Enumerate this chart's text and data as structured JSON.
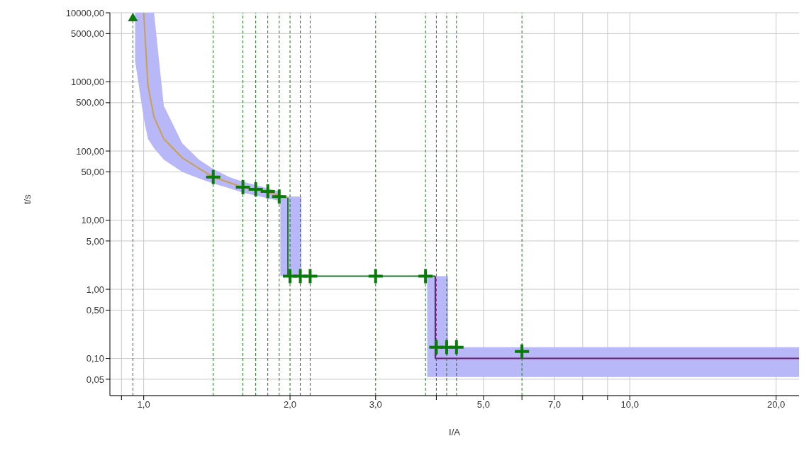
{
  "chart_data": {
    "type": "line",
    "xlabel": "I/A",
    "ylabel": "t/s",
    "log": "xy",
    "grid": true,
    "legend": false,
    "xlim": [
      0.852,
      22.3
    ],
    "ylim": [
      0.029,
      10000
    ],
    "xticks": [
      {
        "value": 0.9,
        "label": null
      },
      {
        "value": 1,
        "label": "1,0"
      },
      {
        "value": 2,
        "label": "2,0"
      },
      {
        "value": 3,
        "label": "3,0"
      },
      {
        "value": 4,
        "label": null
      },
      {
        "value": 5,
        "label": "5,0"
      },
      {
        "value": 6,
        "label": null
      },
      {
        "value": 7,
        "label": "7,0"
      },
      {
        "value": 8,
        "label": null
      },
      {
        "value": 9,
        "label": null
      },
      {
        "value": 10,
        "label": "10,0"
      },
      {
        "value": 20,
        "label": "20,0"
      }
    ],
    "yticks": [
      {
        "value": 0.05,
        "label": "0,05"
      },
      {
        "value": 0.1,
        "label": "0,10"
      },
      {
        "value": 0.5,
        "label": "0,50"
      },
      {
        "value": 1,
        "label": "1,00"
      },
      {
        "value": 5,
        "label": "5,00"
      },
      {
        "value": 10,
        "label": "10,00"
      },
      {
        "value": 50,
        "label": "50,00"
      },
      {
        "value": 100,
        "label": "100,00"
      },
      {
        "value": 500,
        "label": "500,00"
      },
      {
        "value": 1000,
        "label": "1000,00"
      },
      {
        "value": 5000,
        "label": "5000,00"
      },
      {
        "value": 10000,
        "label": "10000,00"
      }
    ],
    "series": [
      {
        "color": "#c8a050",
        "x": [
          0.96,
          1.0,
          1.02,
          1.05,
          1.1,
          1.2,
          1.3,
          1.39,
          1.5,
          1.6,
          1.9,
          1.98
        ],
        "values": [
          null,
          10000,
          900,
          310,
          150,
          80,
          56,
          42,
          35,
          30,
          23,
          21
        ],
        "lower": [
          2000,
          300,
          150,
          110,
          75,
          50,
          40,
          34,
          29,
          25,
          19,
          null
        ],
        "upper": [
          10000,
          10000,
          10000,
          10000,
          450,
          130,
          75,
          55,
          42,
          36,
          26,
          null
        ]
      },
      {
        "color": "#1e7a2e",
        "x": [
          1.91,
          1.98,
          1.98,
          2.11,
          3.98
        ],
        "values": [
          null,
          21,
          1.55,
          1.55,
          1.55
        ],
        "lower": [
          1.55,
          1.55,
          1.55,
          1.55,
          null
        ],
        "upper": [
          22,
          22,
          22,
          22,
          null
        ]
      },
      {
        "color": "#6a1a6a",
        "x": [
          3.83,
          3.98,
          3.98,
          4.23,
          4.23,
          22.3
        ],
        "values": [
          null,
          1.55,
          0.1,
          0.1,
          0.1,
          0.1
        ],
        "lower": [
          0.054,
          0.054,
          0.054,
          0.054,
          0.054,
          0.054
        ],
        "upper": [
          1.55,
          1.55,
          1.55,
          1.55,
          0.145,
          0.145
        ]
      },
      {
        "type": "scatter",
        "color": "#0a7a0a",
        "marker": "cross",
        "x": [
          1.39,
          1.6,
          1.7,
          1.8,
          1.9,
          2.0,
          2.1,
          2.2,
          3.0,
          3.8,
          4.0,
          4.2,
          4.4,
          6.0
        ],
        "values": [
          42,
          30,
          28,
          26,
          22,
          1.55,
          1.55,
          1.55,
          1.55,
          1.55,
          0.145,
          0.145,
          0.145,
          0.126
        ]
      },
      {
        "type": "scatter",
        "color": "#0a7a0a",
        "marker": "triangle",
        "x": [
          0.95
        ],
        "values": [
          8500
        ]
      }
    ],
    "ref_lines": [
      {
        "axis": "x",
        "value": 0.95,
        "color": "#1a7a1a",
        "line_style": "dashed"
      },
      {
        "axis": "x",
        "value": 1.39,
        "color": "#1a7a1a",
        "line_style": "dashed"
      },
      {
        "axis": "x",
        "value": 1.6,
        "color": "#1a7a1a",
        "line_style": "dashed"
      },
      {
        "axis": "x",
        "value": 1.7,
        "color": "#1a7a1a",
        "line_style": "dashed"
      },
      {
        "axis": "x",
        "value": 1.8,
        "color": "#1a7a1a",
        "line_style": "dashed"
      },
      {
        "axis": "x",
        "value": 1.9,
        "color": "#1a7a1a",
        "line_style": "dashed"
      },
      {
        "axis": "x",
        "value": 2.0,
        "color": "#1a7a1a",
        "line_style": "dashed"
      },
      {
        "axis": "x",
        "value": 2.1,
        "color": "#1a7a1a",
        "line_style": "dashed"
      },
      {
        "axis": "x",
        "value": 2.2,
        "color": "#1a7a1a",
        "line_style": "dashed"
      },
      {
        "axis": "x",
        "value": 3.0,
        "color": "#1a7a1a",
        "line_style": "dashed"
      },
      {
        "axis": "x",
        "value": 3.8,
        "color": "#1a7a1a",
        "line_style": "dashed"
      },
      {
        "axis": "x",
        "value": 4.0,
        "color": "#1a7a1a",
        "line_style": "dashed"
      },
      {
        "axis": "x",
        "value": 4.2,
        "color": "#1a7a1a",
        "line_style": "dashed"
      },
      {
        "axis": "x",
        "value": 4.4,
        "color": "#1a7a1a",
        "line_style": "dashed"
      },
      {
        "axis": "x",
        "value": 6.0,
        "color": "#1a7a1a",
        "line_style": "dashed"
      }
    ]
  }
}
